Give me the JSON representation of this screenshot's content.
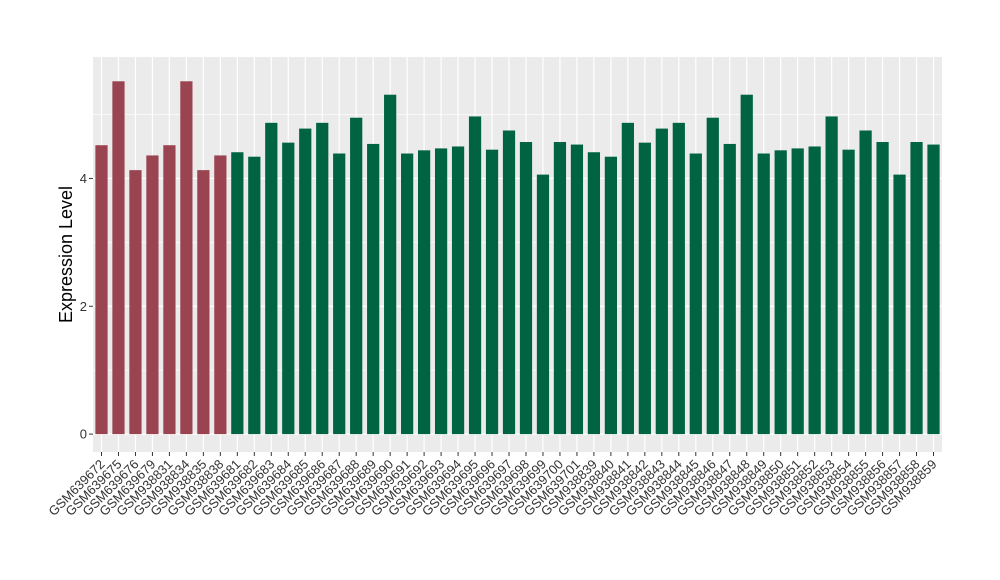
{
  "chart_data": {
    "type": "bar",
    "title": "",
    "xlabel": "",
    "ylabel": "Expression Level",
    "ylim": [
      -0.28,
      5.9
    ],
    "yticks": [
      0,
      2,
      4
    ],
    "grid": true,
    "legend": "none",
    "categories": [
      "GSM639672",
      "GSM639675",
      "GSM639676",
      "GSM639679",
      "GSM938831",
      "GSM938834",
      "GSM938835",
      "GSM938838",
      "GSM639681",
      "GSM639682",
      "GSM639683",
      "GSM639684",
      "GSM639685",
      "GSM639686",
      "GSM639687",
      "GSM639688",
      "GSM639689",
      "GSM639690",
      "GSM639691",
      "GSM639692",
      "GSM639693",
      "GSM639694",
      "GSM639695",
      "GSM639696",
      "GSM639697",
      "GSM639698",
      "GSM639699",
      "GSM639700",
      "GSM639701",
      "GSM938839",
      "GSM938840",
      "GSM938841",
      "GSM938842",
      "GSM938843",
      "GSM938844",
      "GSM938845",
      "GSM938846",
      "GSM938847",
      "GSM938848",
      "GSM938849",
      "GSM938850",
      "GSM938851",
      "GSM938852",
      "GSM938853",
      "GSM938854",
      "GSM938855",
      "GSM938856",
      "GSM938857",
      "GSM938858",
      "GSM938859"
    ],
    "values": [
      4.52,
      5.52,
      4.13,
      4.36,
      4.52,
      5.52,
      4.13,
      4.36,
      4.41,
      4.34,
      4.87,
      4.56,
      4.78,
      4.87,
      4.39,
      4.95,
      4.54,
      5.31,
      4.39,
      4.44,
      4.47,
      4.5,
      4.97,
      4.45,
      4.75,
      4.57,
      4.06,
      4.57,
      4.53,
      4.41,
      4.34,
      4.87,
      4.56,
      4.78,
      4.87,
      4.39,
      4.95,
      4.54,
      5.31,
      4.39,
      4.44,
      4.47,
      4.5,
      4.97,
      4.45,
      4.75,
      4.57,
      4.06,
      4.57,
      4.53
    ],
    "groups": [
      "red",
      "red",
      "red",
      "red",
      "red",
      "red",
      "red",
      "red",
      "green",
      "green",
      "green",
      "green",
      "green",
      "green",
      "green",
      "green",
      "green",
      "green",
      "green",
      "green",
      "green",
      "green",
      "green",
      "green",
      "green",
      "green",
      "green",
      "green",
      "green",
      "green",
      "green",
      "green",
      "green",
      "green",
      "green",
      "green",
      "green",
      "green",
      "green",
      "green",
      "green",
      "green",
      "green",
      "green",
      "green",
      "green",
      "green",
      "green",
      "green",
      "green"
    ],
    "colors": {
      "red": "#9b4451",
      "green": "#006442",
      "panel": "#ebebeb",
      "gridline": "#ffffff",
      "axis_text": "#333333"
    }
  }
}
